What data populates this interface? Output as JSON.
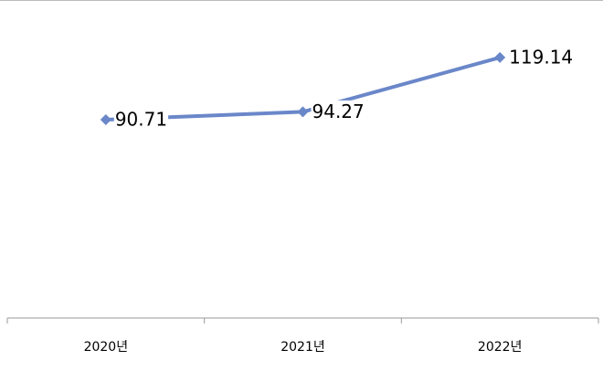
{
  "chart_data": {
    "type": "line",
    "categories": [
      "2020년",
      "2021년",
      "2022년"
    ],
    "values": [
      90.71,
      94.27,
      119.14
    ],
    "color": "#6a87c9",
    "ylim": [
      0,
      140
    ]
  }
}
